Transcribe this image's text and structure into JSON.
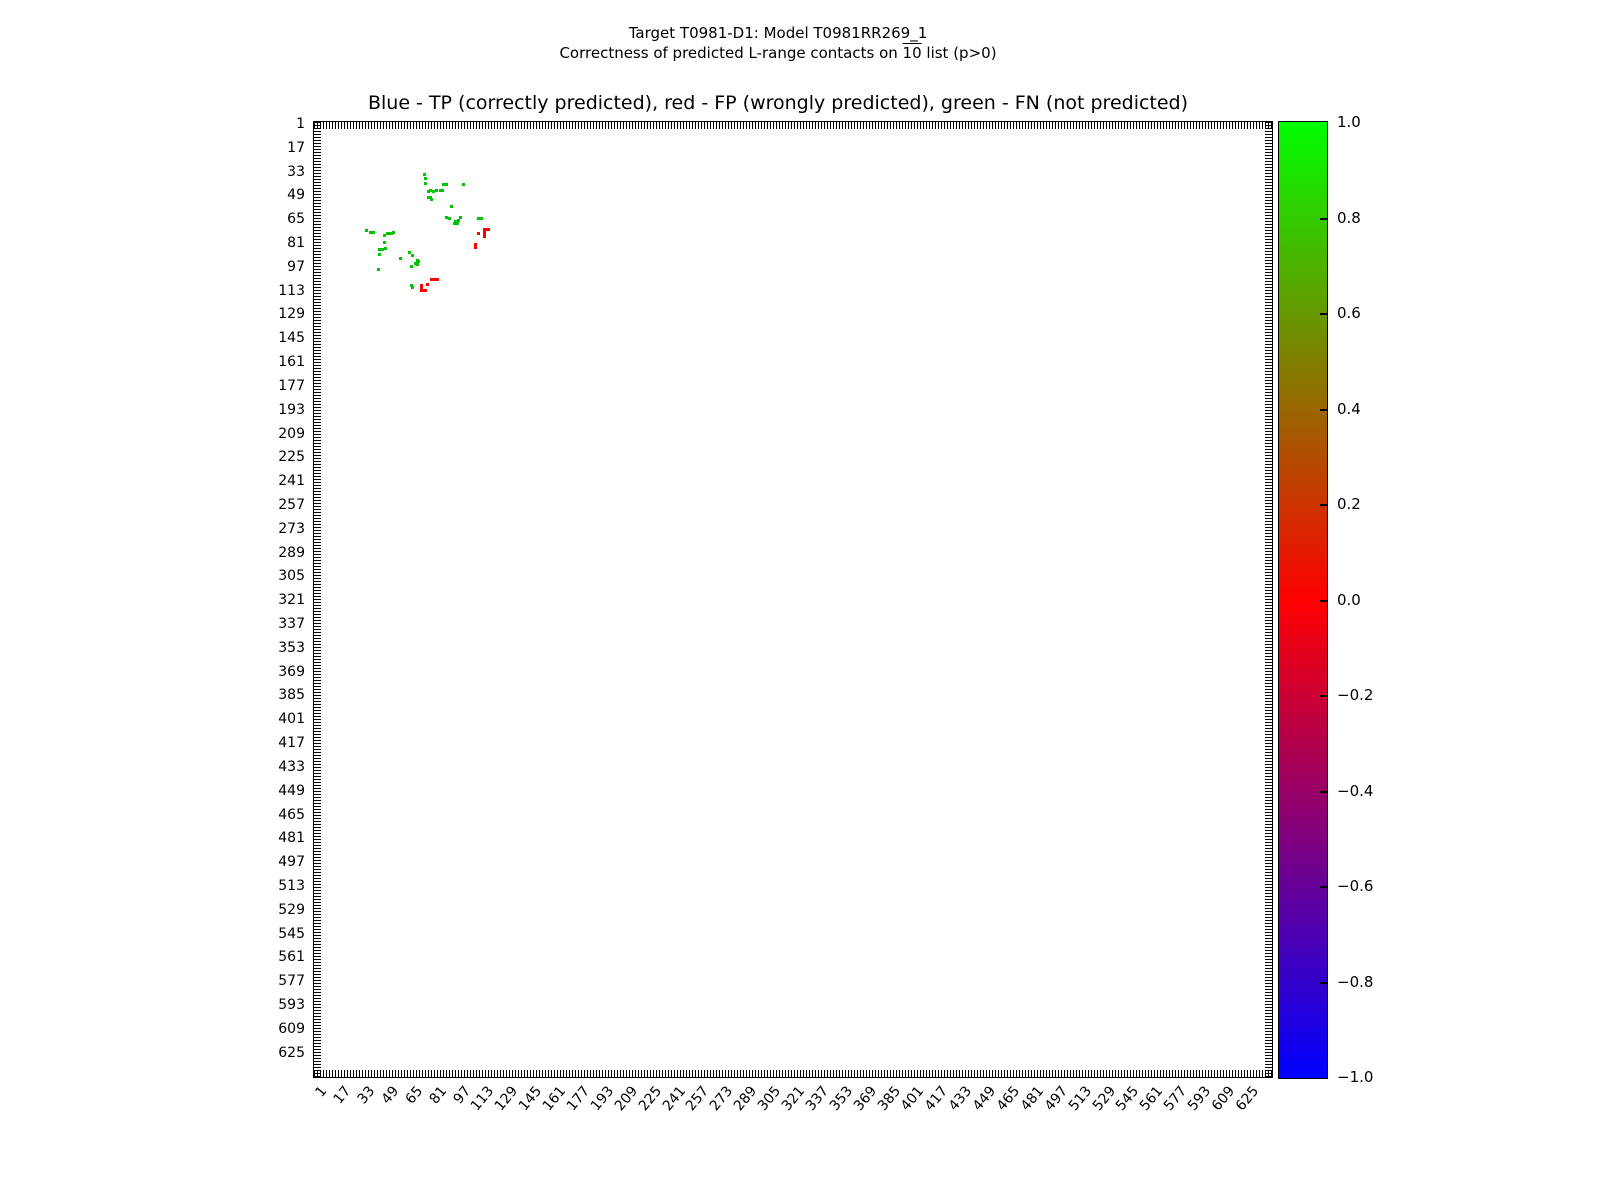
{
  "suptitle": {
    "line1": "Target T0981-D1: Model T0981RR269_1",
    "line2_pre": "Correctness of predicted L-range contacts on ",
    "line2_overline": "10",
    "line2_post": " list (p>0)"
  },
  "axes_title": "Blue - TP (correctly predicted), red - FP (wrongly predicted), green - FN (not predicted)",
  "chart_data": {
    "type": "scatter",
    "title": "Blue - TP (correctly predicted), red - FP (wrongly predicted), green - FN (not predicted)",
    "xlabel": "",
    "ylabel": "",
    "axis_range": [
      0,
      641
    ],
    "y_inverted": true,
    "grid": false,
    "axis_ticks": [
      1,
      17,
      33,
      49,
      65,
      81,
      97,
      113,
      129,
      145,
      161,
      177,
      193,
      209,
      225,
      241,
      257,
      273,
      289,
      305,
      321,
      337,
      353,
      369,
      385,
      401,
      417,
      433,
      449,
      465,
      481,
      497,
      513,
      529,
      545,
      561,
      577,
      593,
      609,
      625
    ],
    "series": [
      {
        "name": "TP (correctly predicted)",
        "color": "#0000ff",
        "points": []
      },
      {
        "name": "FP (wrongly predicted)",
        "color": "#ff0000",
        "points": [
          [
            114,
            72
          ],
          [
            115,
            72
          ],
          [
            116,
            72
          ],
          [
            117,
            72
          ],
          [
            114,
            73
          ],
          [
            114,
            74
          ],
          [
            110,
            75
          ],
          [
            114,
            75
          ],
          [
            114,
            76
          ],
          [
            114,
            77
          ],
          [
            108,
            82
          ],
          [
            108,
            84
          ],
          [
            79,
            106
          ],
          [
            80,
            106
          ],
          [
            82,
            106
          ],
          [
            83,
            106
          ],
          [
            76,
            109
          ],
          [
            72,
            110
          ],
          [
            72,
            111
          ],
          [
            72,
            112
          ],
          [
            72,
            113
          ],
          [
            73,
            113
          ],
          [
            74,
            113
          ],
          [
            75,
            113
          ]
        ]
      },
      {
        "name": "FN (not predicted)",
        "color": "#00c400",
        "points": [
          [
            74,
            35
          ],
          [
            75,
            38
          ],
          [
            75,
            41
          ],
          [
            87,
            42
          ],
          [
            89,
            42
          ],
          [
            100,
            42
          ],
          [
            78,
            46
          ],
          [
            82,
            46
          ],
          [
            85,
            46
          ],
          [
            86,
            46
          ],
          [
            77,
            47
          ],
          [
            80,
            47
          ],
          [
            77,
            51
          ],
          [
            78,
            51
          ],
          [
            79,
            52
          ],
          [
            92,
            57
          ],
          [
            89,
            64
          ],
          [
            98,
            64
          ],
          [
            91,
            65
          ],
          [
            110,
            65
          ],
          [
            112,
            65
          ],
          [
            97,
            66
          ],
          [
            95,
            67
          ],
          [
            94,
            68
          ],
          [
            96,
            68
          ],
          [
            35,
            73
          ],
          [
            38,
            74
          ],
          [
            40,
            74
          ],
          [
            53,
            74
          ],
          [
            49,
            75
          ],
          [
            51,
            75
          ],
          [
            52,
            75
          ],
          [
            47,
            76
          ],
          [
            47,
            81
          ],
          [
            48,
            85
          ],
          [
            44,
            86
          ],
          [
            46,
            86
          ],
          [
            64,
            88
          ],
          [
            44,
            89
          ],
          [
            66,
            90
          ],
          [
            58,
            92
          ],
          [
            69,
            93
          ],
          [
            70,
            94
          ],
          [
            68,
            95
          ],
          [
            69,
            96
          ],
          [
            65,
            97
          ],
          [
            43,
            99
          ],
          [
            65,
            110
          ],
          [
            66,
            111
          ]
        ]
      }
    ],
    "colorbar": {
      "min": -1.0,
      "max": 1.0,
      "tick_values": [
        1.0,
        0.8,
        0.6,
        0.4,
        0.2,
        0.0,
        -0.2,
        -0.4,
        -0.6,
        -0.8,
        -1.0
      ],
      "tick_labels": [
        "1.0",
        "0.8",
        "0.6",
        "0.4",
        "0.2",
        "0.0",
        "−0.2",
        "−0.4",
        "−0.6",
        "−0.8",
        "−1.0"
      ],
      "gradient_top_mid_bottom": [
        "#00ff00",
        "#ff0000",
        "#0000ff"
      ]
    }
  }
}
